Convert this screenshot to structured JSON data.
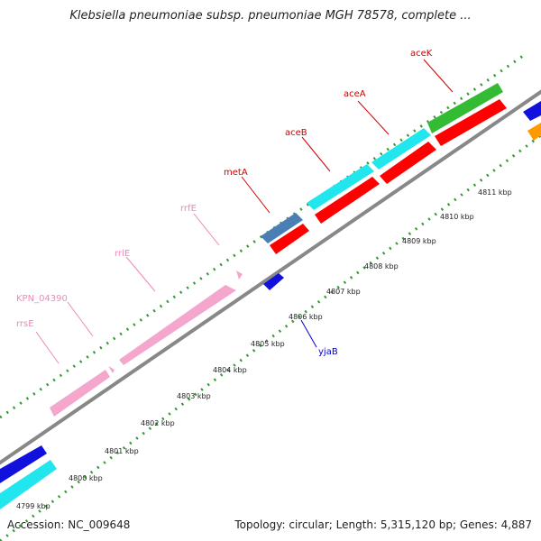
{
  "header": {
    "title": "Klebsiella pneumoniae subsp. pneumoniae MGH 78578, complete ..."
  },
  "footer": {
    "accession": "Accession: NC_009648",
    "summary": "Topology: circular; Length: 5,315,120 bp; Genes: 4,887"
  },
  "scale": {
    "ticks": [
      "4799 kbp",
      "4800 kbp",
      "4801 kbp",
      "4802 kbp",
      "4803 kbp",
      "4804 kbp",
      "4805 kbp",
      "4806 kbp",
      "4807 kbp",
      "4808 kbp",
      "4809 kbp",
      "4810 kbp",
      "4811 kbp"
    ]
  },
  "features": [
    {
      "name": "rrsE",
      "color": "#ee88bb"
    },
    {
      "name": "KPN_04390",
      "color": "#ee88bb"
    },
    {
      "name": "rrlE",
      "color": "#ee88bb"
    },
    {
      "name": "rrfE",
      "color": "#ee88bb"
    },
    {
      "name": "metA",
      "color": "#cc0000"
    },
    {
      "name": "aceB",
      "color": "#cc0000"
    },
    {
      "name": "aceA",
      "color": "#cc0000"
    },
    {
      "name": "aceK",
      "color": "#cc0000"
    },
    {
      "name": "yjaB",
      "color": "#0000cc"
    }
  ],
  "colors": {
    "backbone": "#888888",
    "dots": "#339933",
    "rRNA": "#f4a6cc",
    "cds_red": "#ff0000",
    "cds_cyan": "#22e6ee",
    "cds_steelblue": "#4a7fb5",
    "cds_green": "#33bb33",
    "cds_blue": "#1111dd",
    "cds_orange": "#ff9900"
  }
}
